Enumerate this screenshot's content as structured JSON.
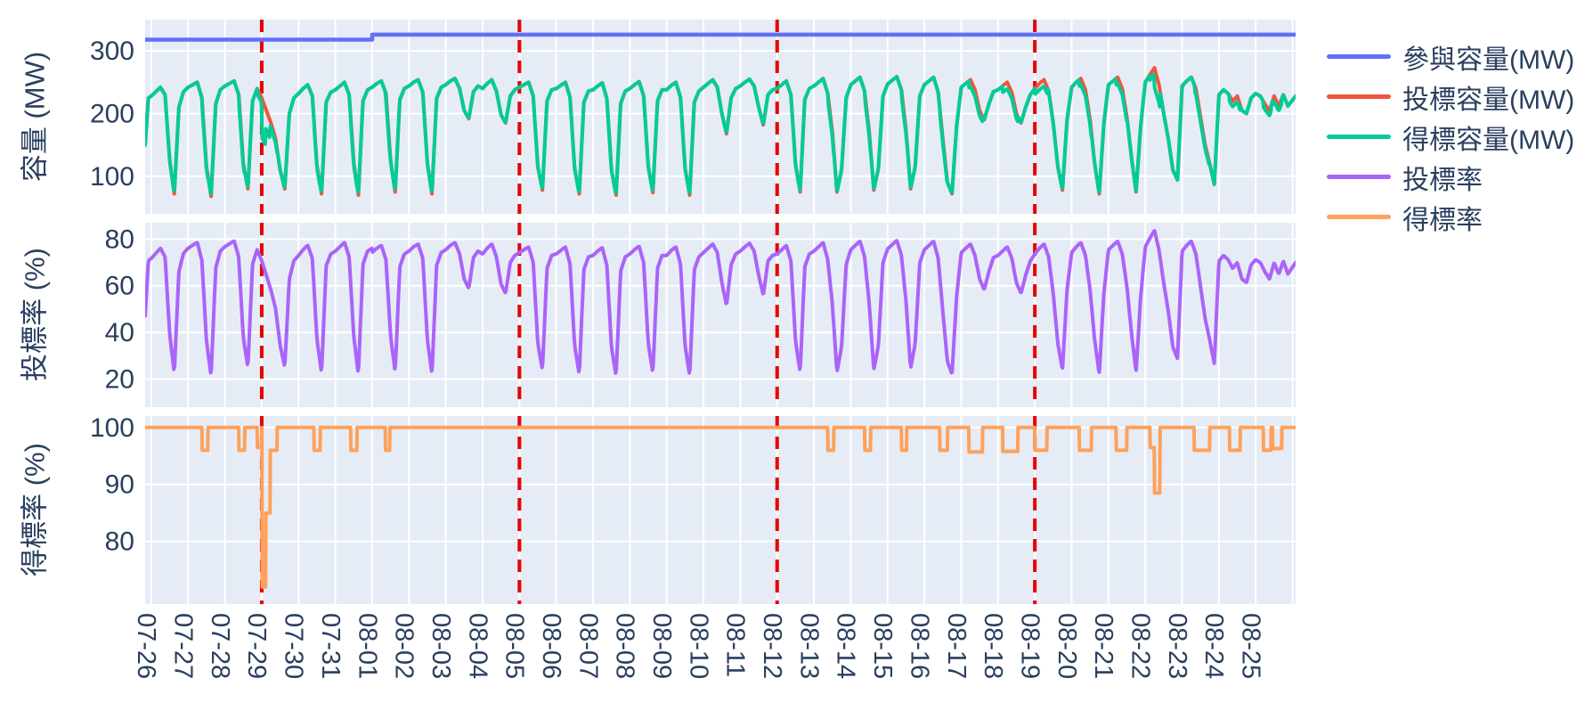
{
  "chart_data": {
    "type": "line",
    "title": "",
    "style": {
      "plot_background": "#E5ECF6",
      "paper_background": "#ffffff",
      "grid_color": "#ffffff",
      "text_color": "#2a3f5f",
      "legend_position": "right"
    },
    "x_axis": {
      "tick_angle": 90,
      "tick_labels": [
        "07-26",
        "07-27",
        "07-28",
        "07-29",
        "07-30",
        "07-31",
        "08-01",
        "08-02",
        "08-03",
        "08-04",
        "08-05",
        "08-06",
        "08-07",
        "08-08",
        "08-09",
        "08-10",
        "08-11",
        "08-12",
        "08-13",
        "08-14",
        "08-15",
        "08-16",
        "08-17",
        "08-18",
        "08-19",
        "08-20",
        "08-21",
        "08-22",
        "08-23",
        "08-24",
        "08-25"
      ]
    },
    "vlines": {
      "color": "#e60000",
      "style": "dashed",
      "dates": [
        "07-29",
        "08-05",
        "08-12",
        "08-19"
      ]
    },
    "subplots": [
      {
        "id": "capacity",
        "axis_title": "容量 (MW)",
        "y_ticks": [
          100,
          200,
          300
        ],
        "y_range": [
          40,
          350
        ],
        "series": [
          "participate_mw",
          "bid_mw",
          "won_mw"
        ]
      },
      {
        "id": "bid_rate",
        "axis_title": "投標率 (%)",
        "y_ticks": [
          20,
          40,
          60,
          80
        ],
        "y_range": [
          8,
          87
        ],
        "series": [
          "bid_rate_pct"
        ]
      },
      {
        "id": "win_rate",
        "axis_title": "得標率 (%)",
        "y_ticks": [
          80,
          90,
          100
        ],
        "y_range": [
          69,
          102
        ],
        "series": [
          "win_rate_pct"
        ]
      }
    ],
    "series": [
      {
        "id": "participate_mw",
        "name": "參與容量(MW)",
        "color": "#636EFA",
        "unit": "MW",
        "kind": "step",
        "value_before": 318,
        "step_date": "08-01",
        "value_after": 326
      },
      {
        "id": "bid_mw",
        "name": "投標容量(MW)",
        "color": "#EF553B",
        "unit": "MW",
        "kind": "profile",
        "profile_hours": [
          0,
          3,
          6,
          9,
          12,
          15,
          18,
          21
        ],
        "lead_in_day_offset_points": [
          [
            -0.1667,
            150
          ],
          [
            -0.08,
            225
          ]
        ],
        "end_day_offset": 31.083,
        "end_value": 228,
        "daily_values": [
          [
            228,
            235,
            242,
            230,
            125,
            72,
            210,
            235
          ],
          [
            242,
            246,
            250,
            225,
            115,
            68,
            215,
            238
          ],
          [
            244,
            248,
            252,
            230,
            120,
            80,
            220,
            240
          ],
          [
            225,
            205,
            185,
            160,
            110,
            80,
            200,
            225
          ],
          [
            232,
            240,
            246,
            228,
            118,
            72,
            218,
            234
          ],
          [
            238,
            244,
            250,
            230,
            122,
            70,
            220,
            238
          ],
          [
            242,
            248,
            252,
            232,
            125,
            75,
            222,
            240
          ],
          [
            244,
            250,
            254,
            234,
            120,
            72,
            224,
            242
          ],
          [
            246,
            252,
            256,
            240,
            205,
            192,
            235,
            244
          ],
          [
            240,
            248,
            254,
            236,
            198,
            185,
            228,
            238
          ],
          [
            242,
            246,
            250,
            228,
            115,
            78,
            220,
            238
          ],
          [
            240,
            245,
            250,
            226,
            112,
            72,
            218,
            236
          ],
          [
            238,
            244,
            249,
            224,
            110,
            70,
            216,
            236
          ],
          [
            240,
            246,
            251,
            228,
            115,
            74,
            220,
            238
          ],
          [
            238,
            245,
            250,
            226,
            112,
            70,
            218,
            236
          ],
          [
            242,
            248,
            254,
            242,
            200,
            168,
            225,
            240
          ],
          [
            244,
            250,
            255,
            244,
            210,
            182,
            230,
            238
          ],
          [
            240,
            246,
            252,
            230,
            118,
            75,
            222,
            240
          ],
          [
            244,
            250,
            256,
            232,
            170,
            75,
            110,
            225
          ],
          [
            246,
            252,
            258,
            236,
            172,
            78,
            112,
            228
          ],
          [
            247,
            253,
            259,
            238,
            175,
            80,
            115,
            228
          ],
          [
            246,
            252,
            258,
            234,
            160,
            90,
            72,
            180
          ],
          [
            242,
            248,
            254,
            238,
            205,
            190,
            215,
            235
          ],
          [
            238,
            244,
            250,
            234,
            200,
            185,
            210,
            230
          ],
          [
            240,
            248,
            254,
            236,
            185,
            115,
            78,
            190
          ],
          [
            242,
            250,
            256,
            238,
            190,
            120,
            72,
            185
          ],
          [
            246,
            252,
            258,
            240,
            195,
            130,
            75,
            180
          ],
          [
            250,
            262,
            273,
            245,
            200,
            160,
            110,
            94
          ],
          [
            244,
            252,
            258,
            240,
            195,
            150,
            120,
            87
          ],
          [
            230,
            238,
            232,
            220,
            228,
            205,
            200,
            225
          ],
          [
            232,
            228,
            215,
            205,
            228,
            212,
            230,
            212
          ]
        ]
      },
      {
        "id": "won_mw",
        "name": "得標容量(MW)",
        "color": "#00CC96",
        "unit": "MW",
        "kind": "derived",
        "derivation": "bid_mw * win_rate_pct / 100"
      },
      {
        "id": "bid_rate_pct",
        "name": "投標率",
        "color": "#AB63FA",
        "unit": "%",
        "kind": "derived",
        "derivation": "bid_mw / participate_mw * 100"
      },
      {
        "id": "win_rate_pct",
        "name": "得標率",
        "color": "#FFA15A",
        "unit": "%",
        "kind": "baseline_dips",
        "baseline": 100,
        "dips": [
          {
            "date": "07-27",
            "from_hour": 9,
            "to_hour": 13,
            "rate": 96
          },
          {
            "date": "07-28",
            "from_hour": 9,
            "to_hour": 13,
            "rate": 96
          },
          {
            "date": "07-28",
            "from_hour": 21,
            "to_hour": 24,
            "rate": 96.5
          },
          {
            "date": "07-29",
            "from_hour": 0.3,
            "to_hour": 2.6,
            "rate": 72
          },
          {
            "date": "07-29",
            "from_hour": 2.6,
            "to_hour": 5.5,
            "rate": 85
          },
          {
            "date": "07-29",
            "from_hour": 5.5,
            "to_hour": 10,
            "rate": 96
          },
          {
            "date": "07-30",
            "from_hour": 10,
            "to_hour": 14,
            "rate": 96
          },
          {
            "date": "07-31",
            "from_hour": 10,
            "to_hour": 14,
            "rate": 96
          },
          {
            "date": "08-01",
            "from_hour": 8.5,
            "to_hour": 11.5,
            "rate": 96
          },
          {
            "date": "08-13",
            "from_hour": 9,
            "to_hour": 13,
            "rate": 96
          },
          {
            "date": "08-14",
            "from_hour": 9,
            "to_hour": 13,
            "rate": 96
          },
          {
            "date": "08-15",
            "from_hour": 9,
            "to_hour": 12.5,
            "rate": 96
          },
          {
            "date": "08-16",
            "from_hour": 10,
            "to_hour": 15,
            "rate": 96
          },
          {
            "date": "08-17",
            "from_hour": 5,
            "to_hour": 14,
            "rate": 95.7
          },
          {
            "date": "08-18",
            "from_hour": 3,
            "to_hour": 13,
            "rate": 95.8
          },
          {
            "date": "08-19",
            "from_hour": 0,
            "to_hour": 8,
            "rate": 96
          },
          {
            "date": "08-20",
            "from_hour": 5,
            "to_hour": 13,
            "rate": 96
          },
          {
            "date": "08-21",
            "from_hour": 5,
            "to_hour": 12,
            "rate": 96
          },
          {
            "date": "08-22",
            "from_hour": 3,
            "to_hour": 6,
            "rate": 96.5
          },
          {
            "date": "08-22",
            "from_hour": 6,
            "to_hour": 9.5,
            "rate": 88.5
          },
          {
            "date": "08-23",
            "from_hour": 8,
            "to_hour": 18,
            "rate": 96
          },
          {
            "date": "08-24",
            "from_hour": 7,
            "to_hour": 14,
            "rate": 96
          },
          {
            "date": "08-25",
            "from_hour": 5,
            "to_hour": 10,
            "rate": 96
          },
          {
            "date": "08-25",
            "from_hour": 11,
            "to_hour": 17,
            "rate": 96.3
          }
        ]
      }
    ]
  }
}
